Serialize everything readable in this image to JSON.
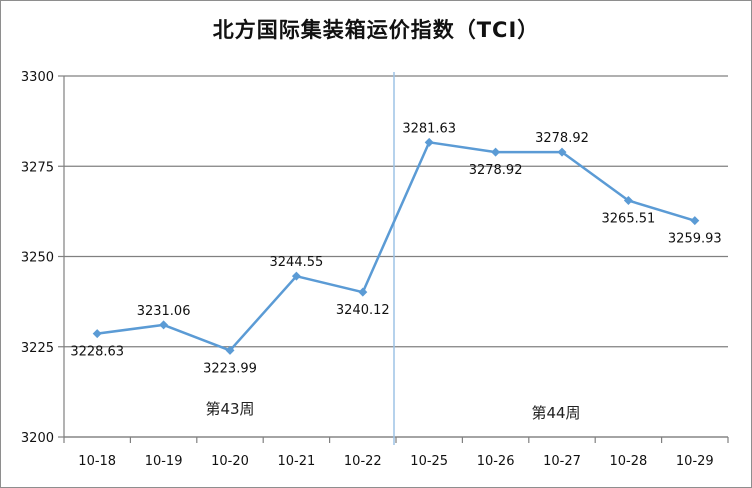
{
  "chart_data": {
    "type": "line",
    "title": "北方国际集装箱运价指数（TCI）",
    "categories": [
      "10-18",
      "10-19",
      "10-20",
      "10-21",
      "10-22",
      "10-25",
      "10-26",
      "10-27",
      "10-28",
      "10-29"
    ],
    "values": [
      3228.63,
      3231.06,
      3223.99,
      3244.55,
      3240.12,
      3281.63,
      3278.92,
      3278.92,
      3265.51,
      3259.93
    ],
    "data_labels": [
      "3228.63",
      "3231.06",
      "3223.99",
      "3244.55",
      "3240.12",
      "3281.63",
      "3278.92",
      "3278.92",
      "3265.51",
      "3259.93"
    ],
    "ylim": [
      3200,
      3300
    ],
    "yticks": [
      3200,
      3225,
      3250,
      3275,
      3300
    ],
    "grid": "horizontal",
    "legend": "none",
    "week_separator_after_index": 4,
    "annotations": [
      "第43周",
      "第44周"
    ],
    "colors": {
      "line": "#5b9bd5",
      "grid": "#808080",
      "separator": "#9dc3e6"
    }
  }
}
